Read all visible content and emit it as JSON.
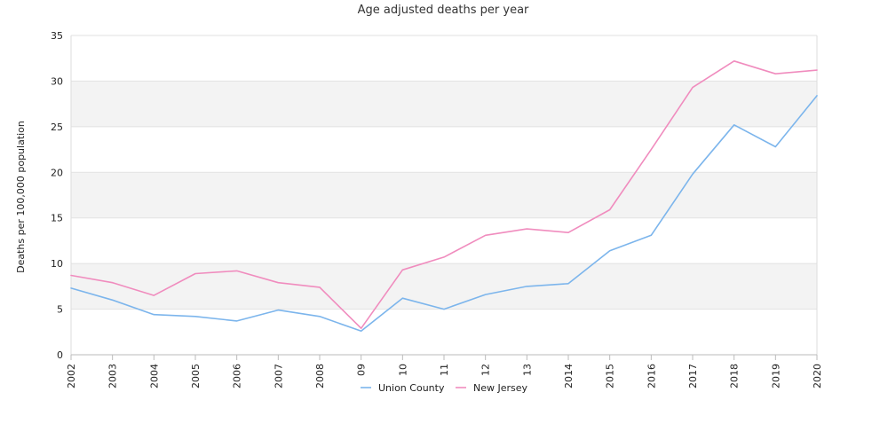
{
  "chart_data": {
    "type": "line",
    "title": "Age adjusted deaths per year",
    "xlabel": "",
    "ylabel": "Deaths per 100,000 population",
    "ylim": [
      0,
      35
    ],
    "y_ticks": [
      0,
      5,
      10,
      15,
      20,
      25,
      30,
      35
    ],
    "grid": true,
    "legend_position": "bottom-center",
    "categories": [
      "2002",
      "2003",
      "2004",
      "2005",
      "2006",
      "2007",
      "2008",
      "09",
      "10",
      "11",
      "12",
      "13",
      "2014",
      "2015",
      "2016",
      "2017",
      "2018",
      "2019",
      "2020"
    ],
    "series": [
      {
        "name": "Union County",
        "color": "#7cb5ec",
        "values": [
          7.3,
          6.0,
          4.4,
          4.2,
          3.7,
          4.9,
          4.2,
          2.6,
          6.2,
          5.0,
          6.6,
          7.5,
          7.8,
          11.4,
          13.1,
          19.8,
          25.2,
          22.8,
          28.4
        ]
      },
      {
        "name": "New Jersey",
        "color": "#f08cbe",
        "values": [
          8.7,
          7.9,
          6.5,
          8.9,
          9.2,
          7.9,
          7.4,
          2.9,
          9.3,
          10.7,
          13.1,
          13.8,
          13.4,
          15.9,
          22.5,
          29.3,
          32.2,
          30.8,
          31.2
        ]
      }
    ]
  }
}
